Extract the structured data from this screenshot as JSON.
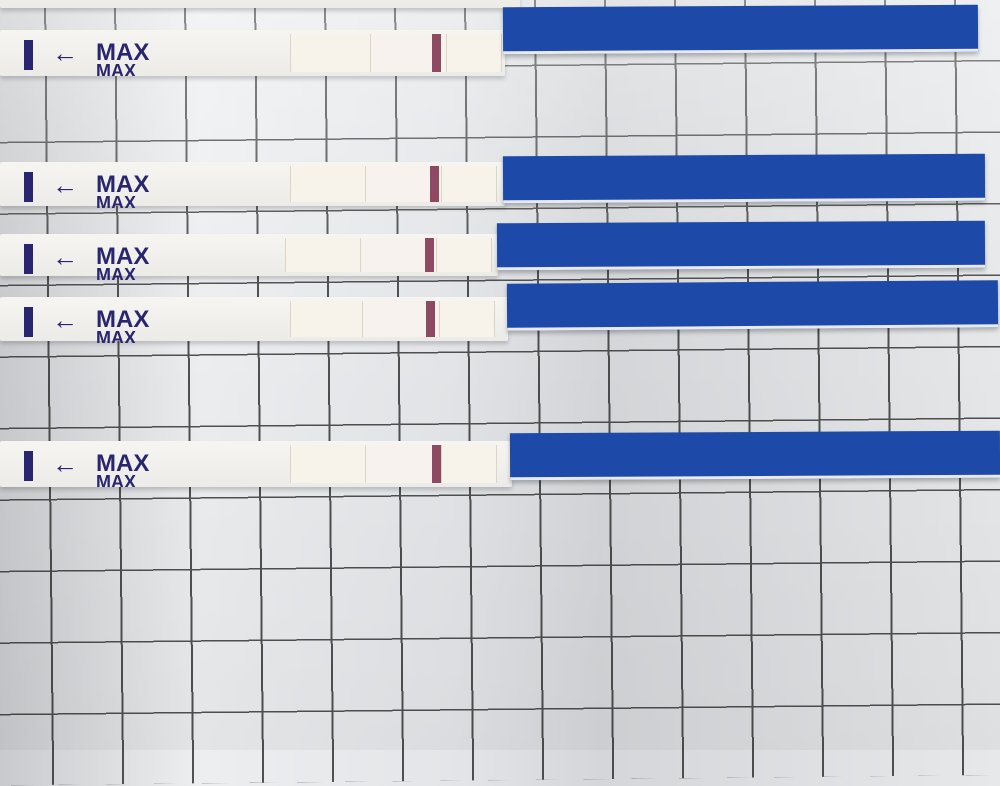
{
  "colors": {
    "handle": "#1d4aa8",
    "ink": "#2a2570",
    "test_line": "#8e4a63",
    "paper_grid": "#2a2a2a"
  },
  "strips": [
    {
      "label": "MAX",
      "arrow": "←",
      "control_line": "visible"
    },
    {
      "label": "MAX",
      "arrow": "←",
      "control_line": "visible"
    },
    {
      "label": "MAX",
      "arrow": "←",
      "control_line": "visible"
    },
    {
      "label": "MAX",
      "arrow": "←",
      "control_line": "visible"
    },
    {
      "label": "MAX",
      "arrow": "←",
      "control_line": "visible"
    }
  ]
}
